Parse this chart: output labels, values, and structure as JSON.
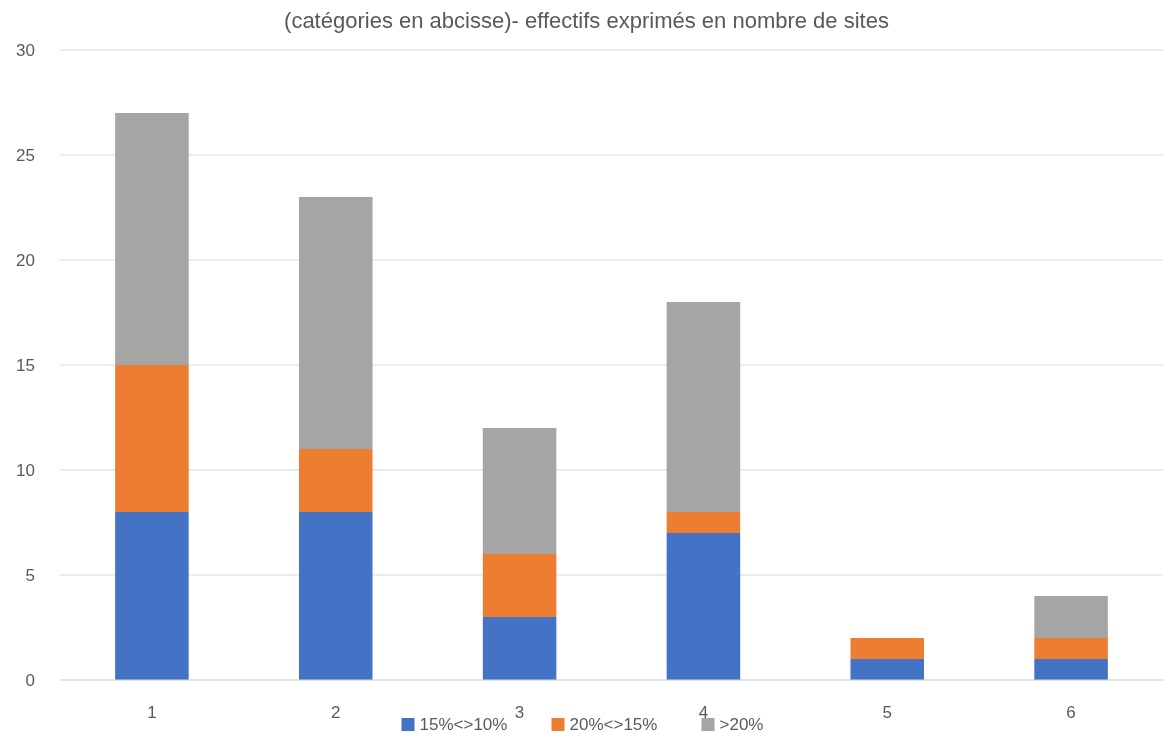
{
  "chart_data": {
    "type": "bar",
    "title": "(catégories en abcisse)- effectifs exprimés en nombre de sites",
    "categories": [
      "1",
      "2",
      "3",
      "4",
      "5",
      "6"
    ],
    "stacked": true,
    "series": [
      {
        "name": "15%<>10%",
        "color": "#4472c4",
        "values": [
          8,
          8,
          3,
          7,
          1,
          1
        ]
      },
      {
        "name": "20%<>15%",
        "color": "#ed7d31",
        "values": [
          7,
          3,
          3,
          1,
          1,
          1
        ]
      },
      {
        "name": ">20%",
        "color": "#a5a5a5",
        "values": [
          12,
          12,
          6,
          10,
          0,
          2
        ]
      }
    ],
    "ylim": [
      0,
      30
    ],
    "yticks": [
      0,
      5,
      10,
      15,
      20,
      25,
      30
    ],
    "grid": "y",
    "legend": "bottom"
  }
}
